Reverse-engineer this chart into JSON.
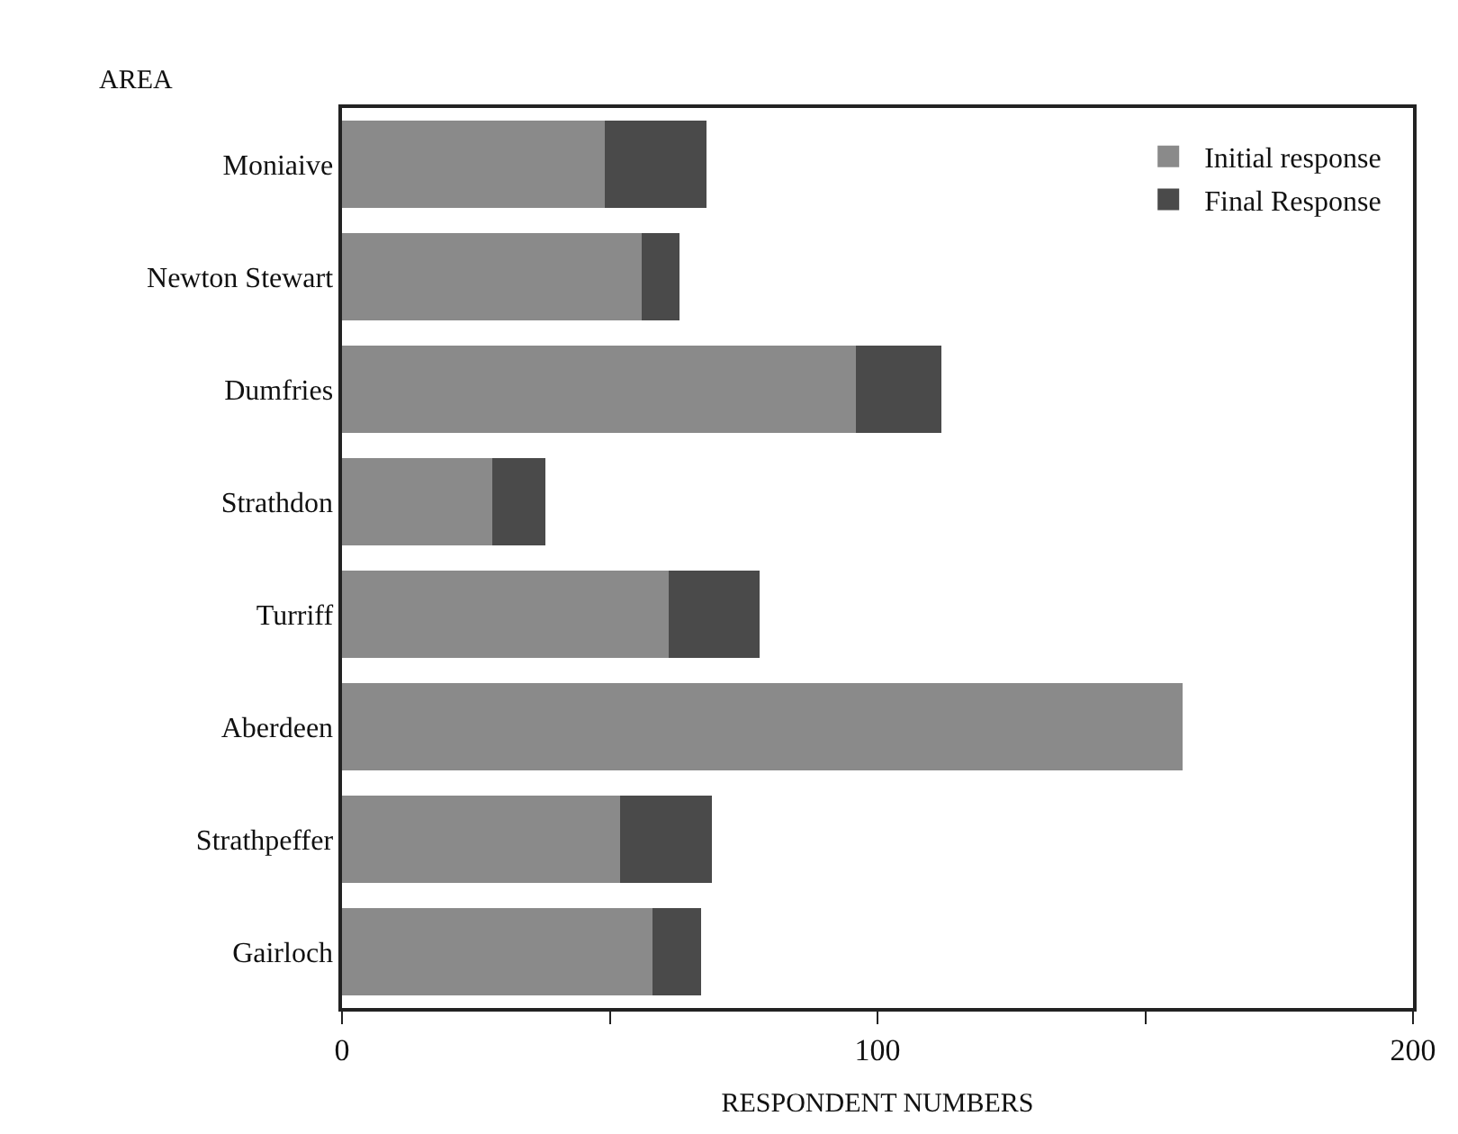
{
  "chart_data": {
    "type": "bar",
    "orientation": "horizontal",
    "stacked": true,
    "ylabel": "AREA",
    "xlabel": "RESPONDENT NUMBERS",
    "categories": [
      "Moniaive",
      "Newton Stewart",
      "Dumfries",
      "Strathdon",
      "Turriff",
      "Aberdeen",
      "Strathpeffer",
      "Gairloch"
    ],
    "series": [
      {
        "name": "Initial response",
        "color": "#8a8a8a",
        "values": [
          49,
          56,
          96,
          28,
          61,
          157,
          52,
          58
        ]
      },
      {
        "name": "Final Response",
        "color": "#4a4a4a",
        "values": [
          19,
          7,
          16,
          10,
          17,
          0,
          17,
          9
        ]
      }
    ],
    "xlim": [
      0,
      200
    ],
    "xticks": [
      0,
      {
        "value": 50,
        "label": null
      },
      100,
      {
        "value": 150,
        "label": null
      },
      200
    ],
    "legend": "top right"
  }
}
